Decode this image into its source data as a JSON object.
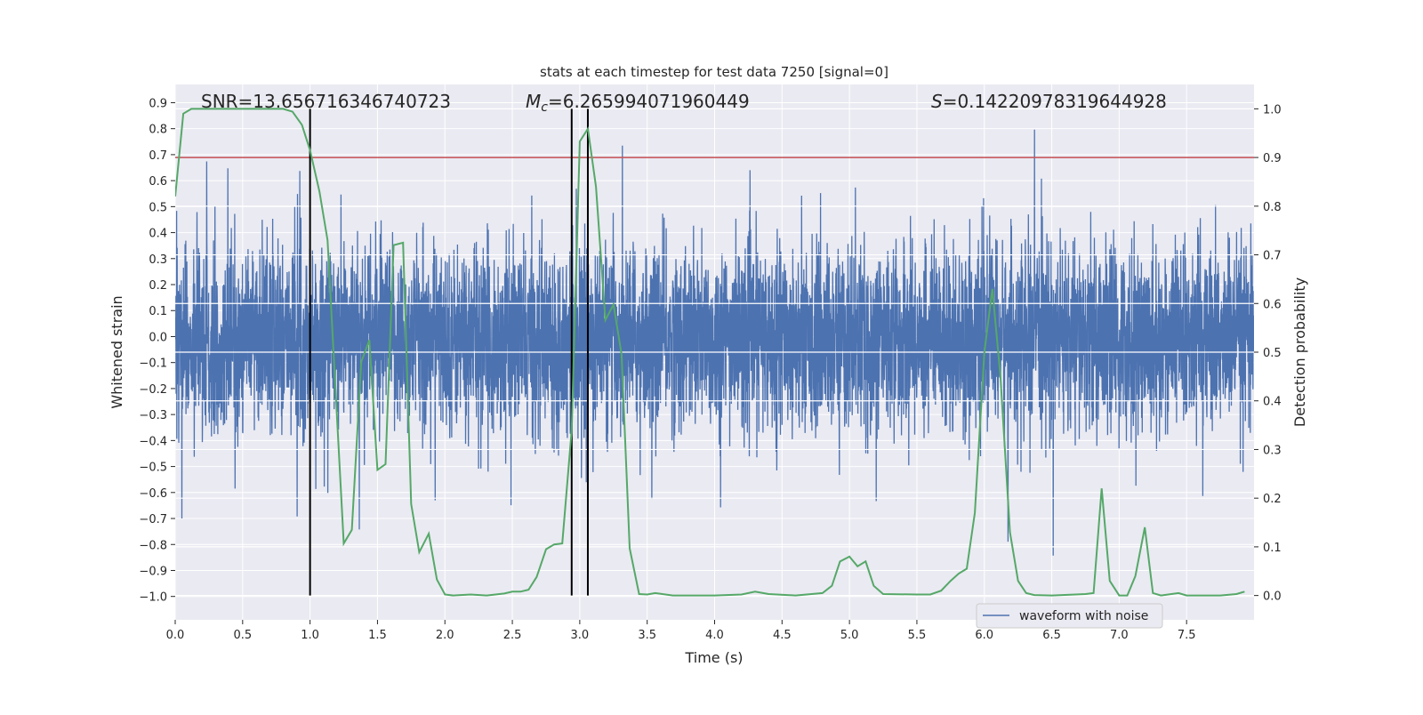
{
  "chart_data": {
    "type": "line",
    "title": "stats at each timestep for test data 7250 [signal=0]",
    "xlabel": "Time (s)",
    "ylabel": "Whitened strain",
    "ylabel_right": "Detection probability",
    "xlim": [
      0,
      8.0
    ],
    "ylim": [
      -1.09,
      0.97
    ],
    "ylim_right": [
      -0.05,
      1.05
    ],
    "xticks": [
      "0.0",
      "0.5",
      "1.0",
      "1.5",
      "2.0",
      "2.5",
      "3.0",
      "3.5",
      "4.0",
      "4.5",
      "5.0",
      "5.5",
      "6.0",
      "6.5",
      "7.0",
      "7.5"
    ],
    "yticks": [
      "0.9",
      "0.8",
      "0.7",
      "0.6",
      "0.5",
      "0.4",
      "0.3",
      "0.2",
      "0.1",
      "0.0",
      "−0.1",
      "−0.2",
      "−0.3",
      "−0.4",
      "−0.5",
      "−0.6",
      "−0.7",
      "−0.8",
      "−0.9",
      "−1.0"
    ],
    "yticks_right": [
      "0.0",
      "0.1",
      "0.2",
      "0.3",
      "0.4",
      "0.5",
      "0.6",
      "0.7",
      "0.8",
      "0.9",
      "1.0"
    ],
    "grid": true,
    "annotations": {
      "snr": "SNR=13.656716346740723",
      "mc_symbol": "M",
      "mc_sub": "c",
      "mc_value": "=6.265994071960449",
      "s_symbol": "S",
      "s_value": "=0.14220978319644928"
    },
    "legend": {
      "placement": "lower-right",
      "entries": [
        "waveform with noise"
      ]
    },
    "series": [
      {
        "name": "waveform with noise",
        "axis": "left",
        "color": "#4c72b0",
        "description_range": [
          -1.0,
          0.88
        ]
      },
      {
        "name": "detection probability",
        "axis": "right",
        "color": "#55a868",
        "x": [
          0.0,
          0.06,
          0.12,
          0.8,
          0.87,
          0.94,
          1.0,
          1.07,
          1.13,
          1.25,
          1.31,
          1.38,
          1.44,
          1.5,
          1.56,
          1.62,
          1.69,
          1.75,
          1.81,
          1.88,
          1.94,
          2.0,
          2.06,
          2.19,
          2.31,
          2.44,
          2.5,
          2.56,
          2.62,
          2.68,
          2.75,
          2.81,
          2.87,
          2.94,
          3.0,
          3.06,
          3.12,
          3.19,
          3.25,
          3.31,
          3.37,
          3.44,
          3.5,
          3.56,
          3.69,
          4.0,
          4.2,
          4.3,
          4.4,
          4.6,
          4.8,
          4.87,
          4.93,
          5.0,
          5.06,
          5.12,
          5.18,
          5.25,
          5.5,
          5.6,
          5.68,
          5.75,
          5.81,
          5.87,
          5.93,
          6.0,
          6.06,
          6.12,
          6.19,
          6.25,
          6.31,
          6.37,
          6.5,
          6.75,
          6.81,
          6.87,
          6.93,
          7.0,
          7.06,
          7.12,
          7.19,
          7.25,
          7.31,
          7.44,
          7.5,
          7.75,
          7.87,
          7.93
        ],
        "values": [
          0.82,
          0.99,
          1.0,
          1.0,
          0.994,
          0.967,
          0.915,
          0.83,
          0.73,
          0.107,
          0.135,
          0.48,
          0.525,
          0.258,
          0.27,
          0.72,
          0.725,
          0.188,
          0.089,
          0.127,
          0.033,
          0.002,
          0.0,
          0.002,
          0.0,
          0.004,
          0.008,
          0.008,
          0.012,
          0.038,
          0.095,
          0.105,
          0.107,
          0.34,
          0.933,
          0.959,
          0.84,
          0.566,
          0.598,
          0.495,
          0.097,
          0.003,
          0.002,
          0.005,
          0.0,
          0.0,
          0.002,
          0.008,
          0.003,
          0.0,
          0.005,
          0.02,
          0.07,
          0.08,
          0.06,
          0.07,
          0.02,
          0.003,
          0.002,
          0.002,
          0.01,
          0.03,
          0.045,
          0.055,
          0.17,
          0.5,
          0.63,
          0.45,
          0.13,
          0.03,
          0.005,
          0.001,
          0.0,
          0.003,
          0.005,
          0.22,
          0.03,
          0.0,
          0.0,
          0.04,
          0.14,
          0.005,
          0.0,
          0.005,
          0.0,
          0.0,
          0.003,
          0.008
        ]
      },
      {
        "name": "threshold",
        "axis": "right",
        "color": "#c44e52",
        "value": 0.9
      },
      {
        "name": "marker lines",
        "axis": "right",
        "color": "#000000",
        "x": [
          1.0,
          2.94,
          3.06
        ],
        "range": [
          0.0,
          1.0
        ]
      }
    ]
  }
}
